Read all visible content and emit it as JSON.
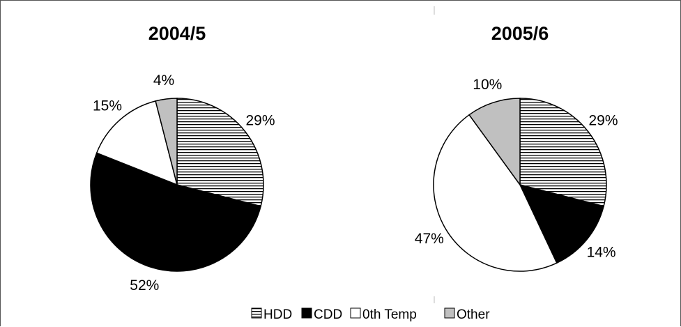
{
  "chart_data": [
    {
      "type": "pie",
      "title": "2004/5",
      "categories": [
        "HDD",
        "CDD",
        "0th Temp",
        "Other"
      ],
      "values": [
        29,
        52,
        15,
        4
      ],
      "labels": [
        "29%",
        "52%",
        "15%",
        "4%"
      ]
    },
    {
      "type": "pie",
      "title": "2005/6",
      "categories": [
        "HDD",
        "CDD",
        "0th Temp",
        "Other"
      ],
      "values": [
        29,
        14,
        47,
        10
      ],
      "labels": [
        "29%",
        "14%",
        "47%",
        "10%"
      ]
    }
  ],
  "legend": {
    "placement": "bottom",
    "items": [
      {
        "label": "HDD",
        "pattern": "horizontal-stripes",
        "color": "#000000"
      },
      {
        "label": "CDD",
        "pattern": "solid",
        "color": "#000000"
      },
      {
        "label": "0th Temp",
        "pattern": "solid",
        "color": "#ffffff"
      },
      {
        "label": "Other",
        "pattern": "solid",
        "color": "#c0c0c0"
      }
    ]
  },
  "colors": {
    "outline": "#000000",
    "hdd_stripe": "#000000",
    "cdd": "#000000",
    "oth_temp": "#ffffff",
    "other": "#c0c0c0",
    "frame": "#555555"
  }
}
